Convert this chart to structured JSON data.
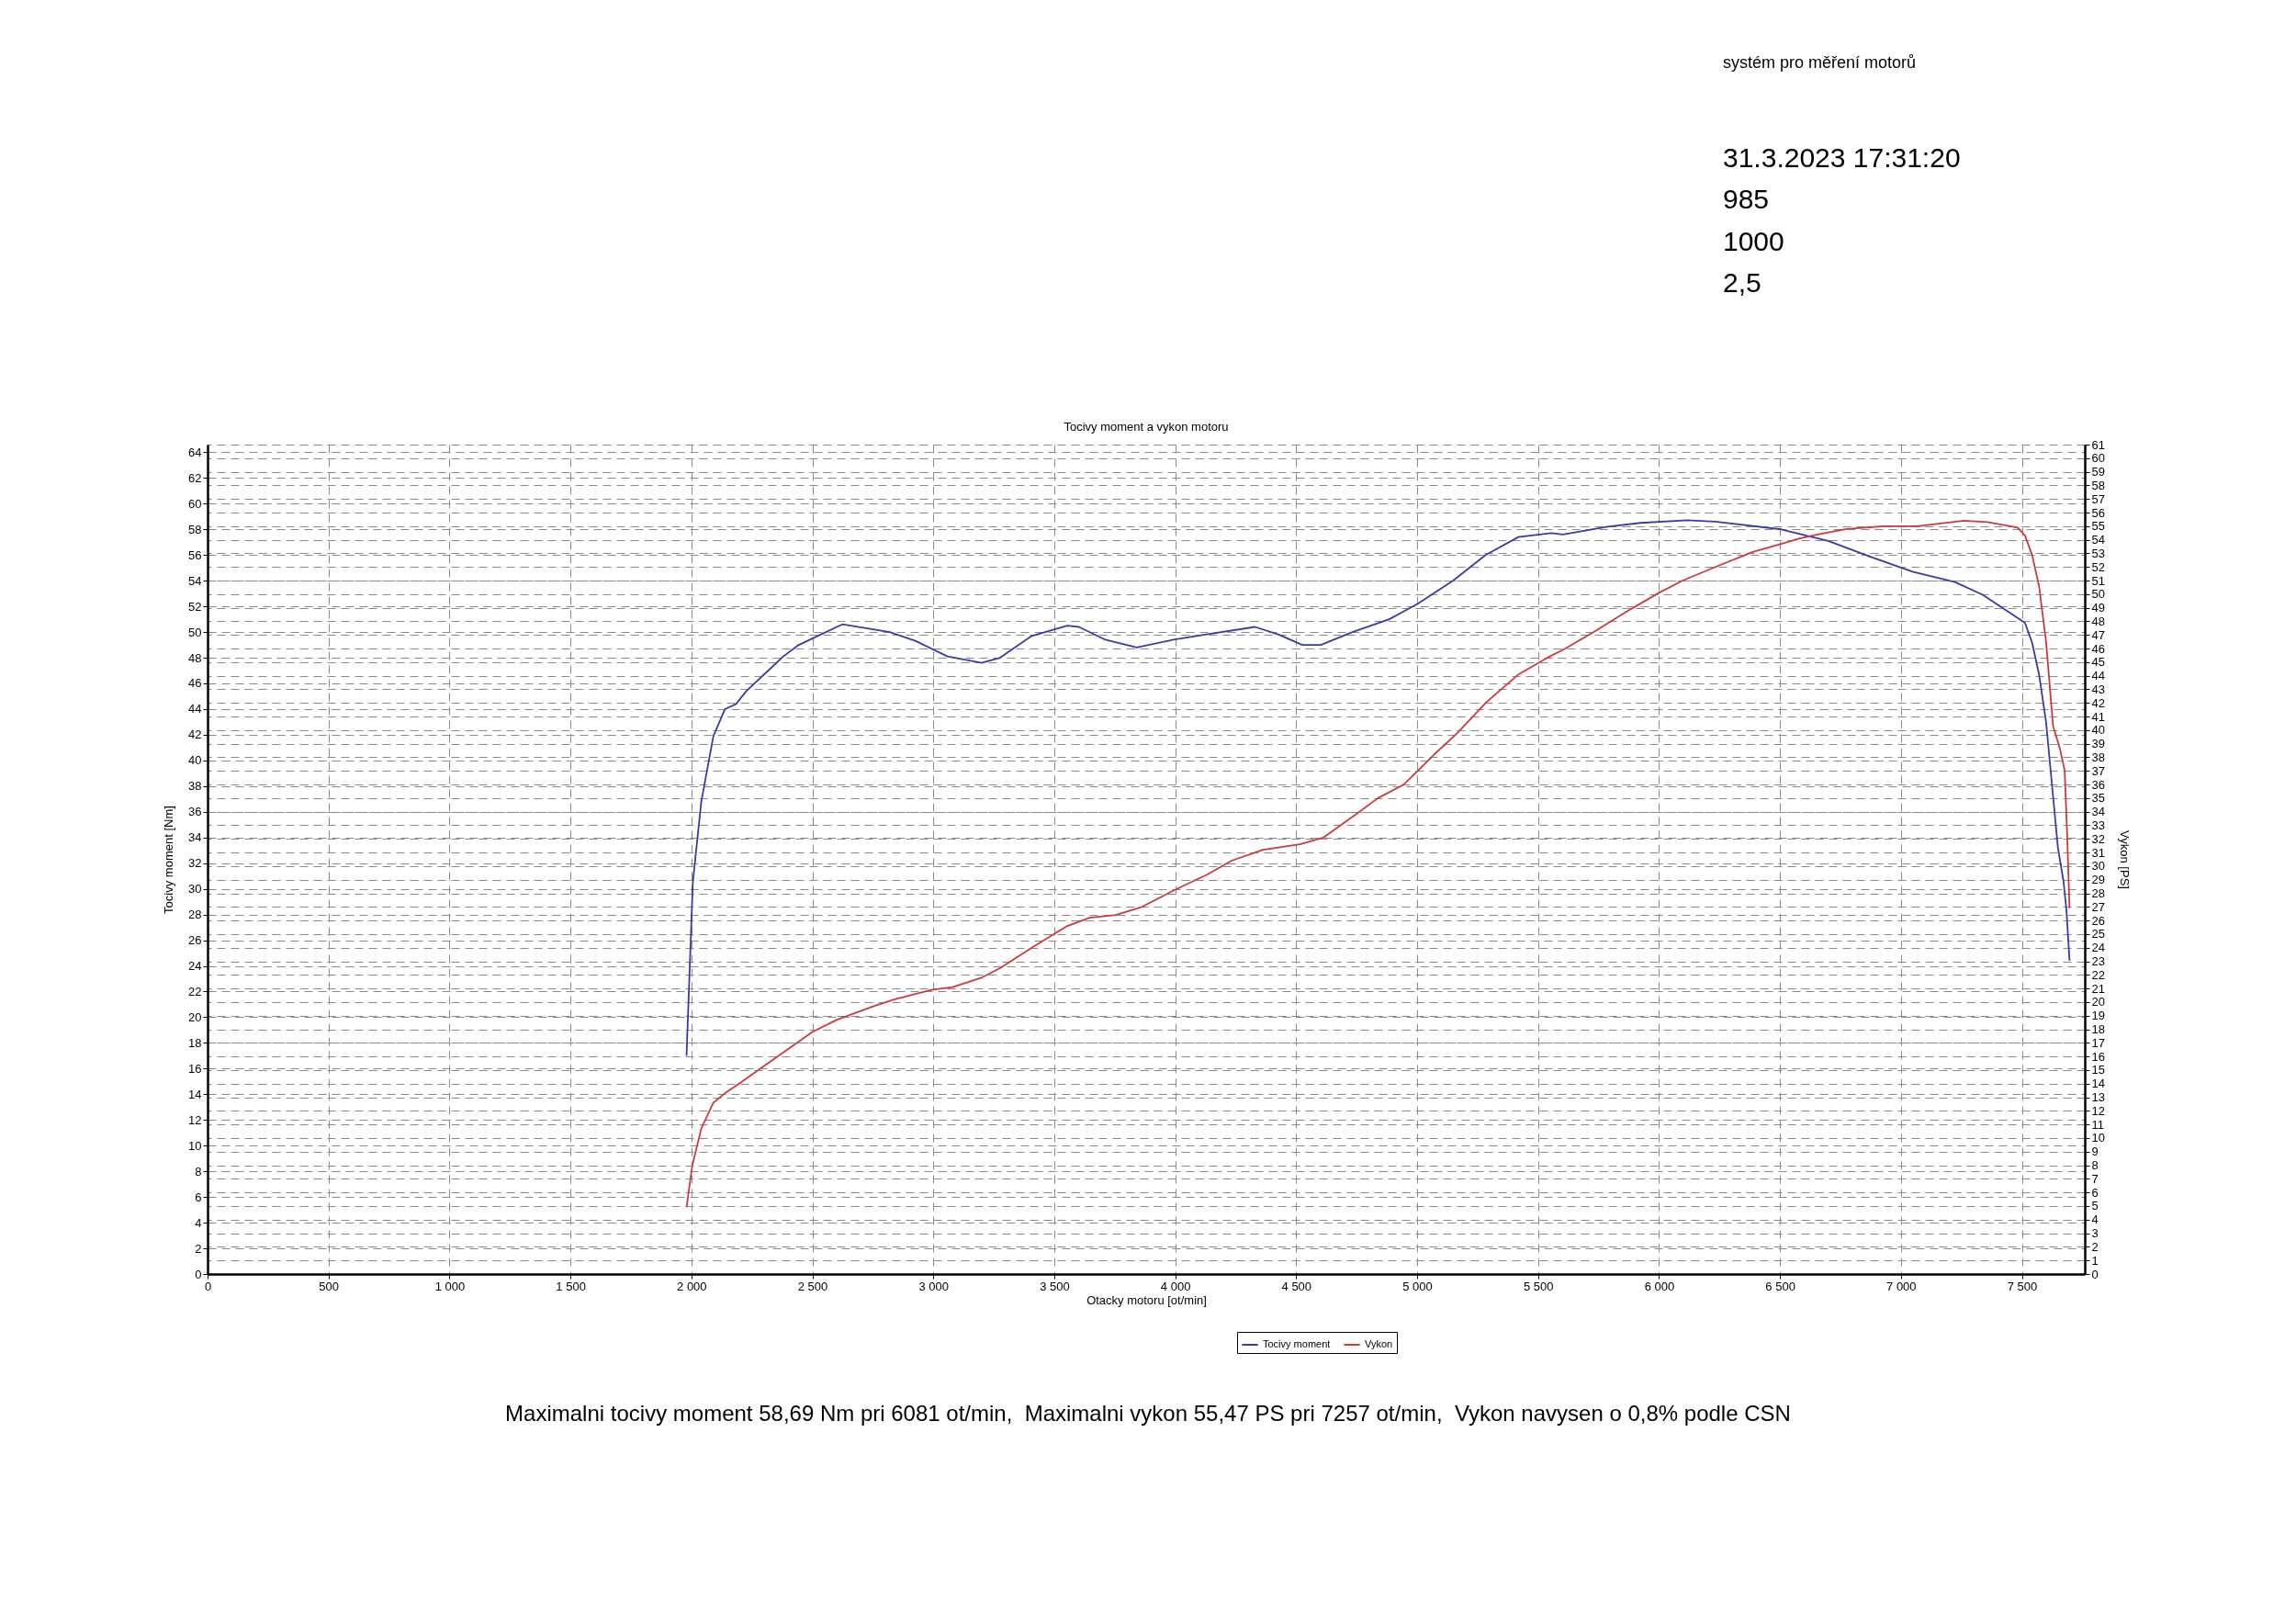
{
  "chart_data": {
    "type": "line",
    "title": "Tocivy moment a vykon motoru",
    "xlabel": "Otacky motoru [ot/min]",
    "ylabel": "Tocivy moment [Nm]",
    "y2label": "Vykon [PS]",
    "annotations": [
      "systém pro měření motorů",
      "31.3.2023 17:31:20",
      "985",
      "1000",
      "2,5",
      "Maximalni tocivy moment 58,69 Nm pri 6081 ot/min,  Maximalni vykon 55,47 PS pri 7257 ot/min,  Vykon navysen o 0,8% podle CSN"
    ],
    "xlim": [
      0,
      7760
    ],
    "xticks": [
      0,
      500,
      {
        "value": 1000,
        "label": "1 000"
      },
      {
        "value": 1500,
        "label": "1 500"
      },
      {
        "value": 2000,
        "label": "2 000"
      },
      {
        "value": 2500,
        "label": "2 500"
      },
      {
        "value": 3000,
        "label": "3 000"
      },
      {
        "value": 3500,
        "label": "3 500"
      },
      {
        "value": 4000,
        "label": "4 000"
      },
      {
        "value": 4500,
        "label": "4 500"
      },
      {
        "value": 5000,
        "label": "5 000"
      },
      {
        "value": 5500,
        "label": "5 500"
      },
      {
        "value": 6000,
        "label": "6 000"
      },
      {
        "value": 6500,
        "label": "6 500"
      },
      {
        "value": 7000,
        "label": "7 000"
      },
      {
        "value": 7500,
        "label": "7 500"
      }
    ],
    "ylim": [
      0,
      64.6
    ],
    "yticks": [
      0,
      2,
      4,
      6,
      8,
      10,
      12,
      14,
      16,
      18,
      20,
      22,
      24,
      26,
      28,
      30,
      32,
      34,
      36,
      38,
      40,
      42,
      44,
      46,
      48,
      50,
      52,
      54,
      56,
      58,
      60,
      62,
      64
    ],
    "y2lim": [
      0,
      61
    ],
    "y2ticks": [
      0,
      1,
      2,
      3,
      4,
      5,
      6,
      7,
      8,
      9,
      10,
      11,
      12,
      13,
      14,
      15,
      16,
      17,
      18,
      19,
      20,
      21,
      22,
      23,
      24,
      25,
      26,
      27,
      28,
      29,
      30,
      31,
      32,
      33,
      34,
      35,
      36,
      37,
      38,
      39,
      40,
      41,
      42,
      43,
      44,
      45,
      46,
      47,
      48,
      49,
      50,
      51,
      52,
      53,
      54,
      55,
      56,
      57,
      58,
      59,
      60,
      61
    ],
    "grid": true,
    "legend": "bottom",
    "line_style": "solid",
    "marker": "none",
    "series": [
      {
        "name": "Tocivy moment",
        "color": "#3a3aa8",
        "x": [
          1980,
          2006,
          2041,
          2091,
          2139,
          2185,
          2227,
          2329,
          2380,
          2444,
          2500,
          2624,
          2820,
          2928,
          3059,
          3200,
          3276,
          3407,
          3554,
          3602,
          3711,
          3841,
          3993,
          4124,
          4330,
          4428,
          4526,
          4602,
          4733,
          4885,
          5003,
          5148,
          5283,
          5419,
          5555,
          5603,
          5788,
          5923,
          6117,
          6233,
          6505,
          6699,
          6854,
          7048,
          7223,
          7338,
          7474,
          7513,
          7542,
          7571,
          7600,
          7629,
          7649,
          7672,
          7684,
          7697
        ],
        "values": [
          17.0,
          30.5,
          36.8,
          41.9,
          44.0,
          44.4,
          45.4,
          47.2,
          48.1,
          49.0,
          49.5,
          50.6,
          50.0,
          49.3,
          48.1,
          47.6,
          48.0,
          49.7,
          50.5,
          50.4,
          49.4,
          48.8,
          49.4,
          49.8,
          50.4,
          49.8,
          49.0,
          49.0,
          50.0,
          51.0,
          52.2,
          54.0,
          56.0,
          57.4,
          57.7,
          57.6,
          58.2,
          58.5,
          58.7,
          58.6,
          58.0,
          57.1,
          56.0,
          54.7,
          53.9,
          52.9,
          51.2,
          50.7,
          49.2,
          46.7,
          43.0,
          37.2,
          33.2,
          30.6,
          28.4,
          24.4
        ]
      },
      {
        "name": "Vykon",
        "color": "#cc3b3b",
        "axis": "y2",
        "x": [
          1980,
          2004,
          2041,
          2091,
          2146,
          2189,
          2341,
          2500,
          2602,
          2754,
          2841,
          2993,
          3080,
          3200,
          3276,
          3407,
          3554,
          3646,
          3754,
          3863,
          3993,
          4135,
          4233,
          4363,
          4515,
          4613,
          4754,
          4838,
          4945,
          5070,
          5167,
          5283,
          5419,
          5536,
          5613,
          5729,
          5865,
          6000,
          6098,
          6233,
          6388,
          6505,
          6582,
          6660,
          6776,
          6931,
          7067,
          7164,
          7261,
          7358,
          7483,
          7513,
          7542,
          7571,
          7600,
          7629,
          7658,
          7677,
          7687,
          7697
        ],
        "values": [
          4.9,
          8.0,
          10.7,
          12.6,
          13.4,
          13.9,
          15.8,
          17.8,
          18.7,
          19.7,
          20.2,
          20.9,
          21.1,
          21.8,
          22.5,
          24.0,
          25.6,
          26.2,
          26.4,
          27.0,
          28.2,
          29.4,
          30.4,
          31.2,
          31.6,
          32.1,
          33.9,
          35.0,
          36.0,
          38.2,
          39.8,
          42.0,
          44.1,
          45.3,
          46.0,
          47.2,
          48.7,
          50.1,
          51.0,
          52.0,
          53.1,
          53.7,
          54.1,
          54.4,
          54.8,
          55.0,
          55.0,
          55.2,
          55.4,
          55.3,
          54.9,
          54.3,
          52.9,
          50.6,
          46.5,
          40.3,
          38.6,
          37.0,
          32.4,
          26.9
        ]
      }
    ]
  }
}
